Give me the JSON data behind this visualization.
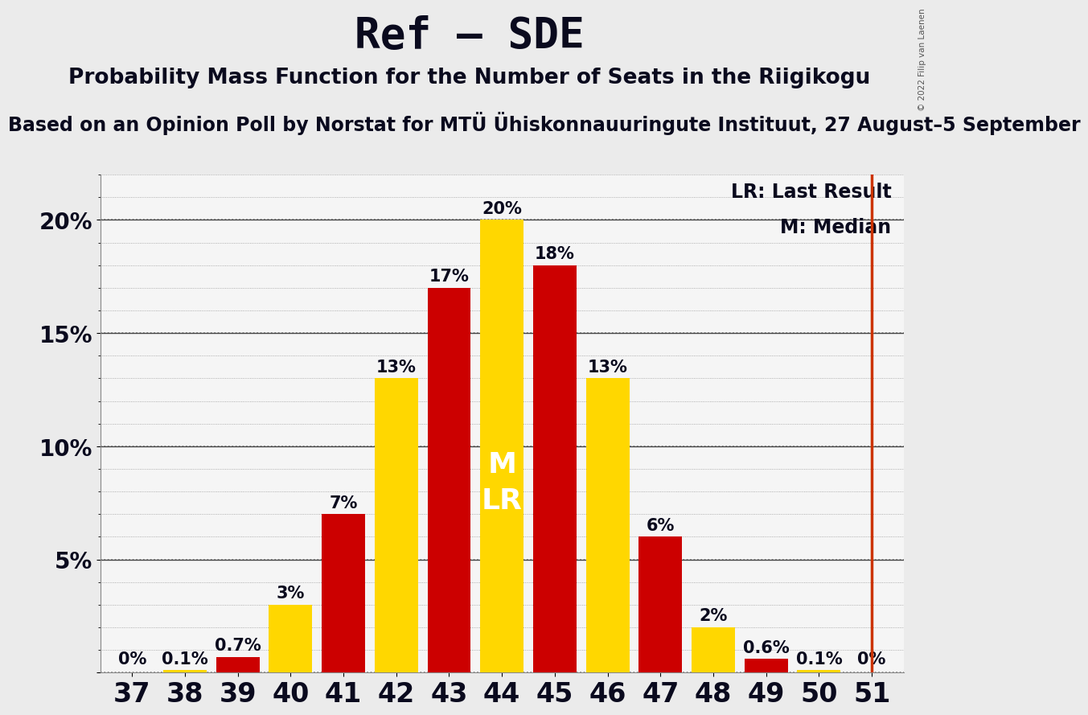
{
  "title": "Ref – SDE",
  "subtitle": "Probability Mass Function for the Number of Seats in the Riigikogu",
  "subtitle2": "Based on an Opinion Poll by Norstat for MTÜ Ühiskonnauuringute Instituut, 27 August–5 September",
  "copyright": "© 2022 Filip van Laenen",
  "seats": [
    37,
    38,
    39,
    40,
    41,
    42,
    43,
    44,
    45,
    46,
    47,
    48,
    49,
    50,
    51
  ],
  "values": [
    0.001,
    0.1,
    0.7,
    3.0,
    7.0,
    13.0,
    17.0,
    20.0,
    18.0,
    13.0,
    6.0,
    2.0,
    0.6,
    0.1,
    0.001
  ],
  "colors": [
    "#FFD700",
    "#FFD700",
    "#CC0000",
    "#FFD700",
    "#CC0000",
    "#FFD700",
    "#CC0000",
    "#FFD700",
    "#CC0000",
    "#FFD700",
    "#CC0000",
    "#FFD700",
    "#CC0000",
    "#FFD700",
    "#CC0000"
  ],
  "labels": [
    "0%",
    "0.1%",
    "0.7%",
    "3%",
    "7%",
    "13%",
    "17%",
    "20%",
    "18%",
    "13%",
    "6%",
    "2%",
    "0.6%",
    "0.1%",
    "0%"
  ],
  "median_seat": 44,
  "lr_seat": 44,
  "median_label": "M\nLR",
  "lr_line_seat": 51,
  "lr_line_color": "#CC3300",
  "ylim": [
    0,
    22
  ],
  "yticks": [
    0,
    5,
    10,
    15,
    20
  ],
  "ytick_labels": [
    "",
    "5%",
    "10%",
    "15%",
    "20%"
  ],
  "background_color": "#EBEBEB",
  "plot_bg_color": "#F5F5F5",
  "bar_width": 0.82,
  "title_fontsize": 38,
  "subtitle_fontsize": 19,
  "subtitle2_fontsize": 17,
  "label_fontsize": 15,
  "ytick_fontsize": 20,
  "xtick_fontsize": 24,
  "legend_fontsize": 17,
  "median_label_color": "#FFFFFF",
  "median_label_fontsize": 26,
  "text_color": "#0a0a1e"
}
